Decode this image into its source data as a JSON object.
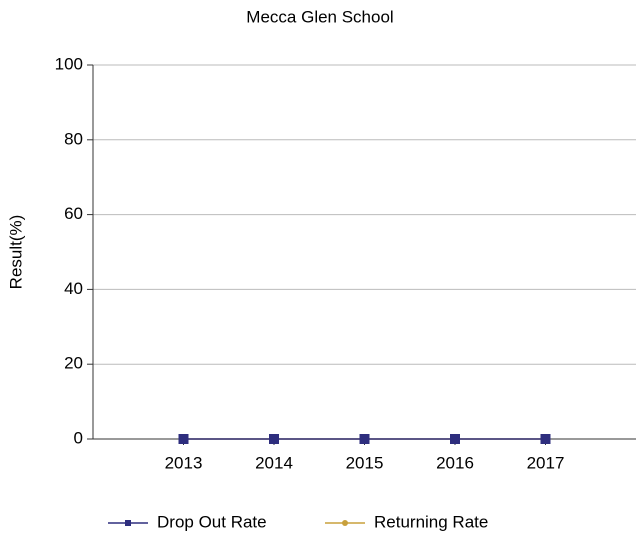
{
  "chart_data": {
    "type": "line",
    "title": "Mecca Glen School",
    "y_label": "Result(%)",
    "categories": [
      "2013",
      "2014",
      "2015",
      "2016",
      "2017"
    ],
    "series": [
      {
        "name": "Drop Out Rate",
        "color": "#2e2e7e",
        "marker": "square",
        "values": [
          0,
          0,
          0,
          0,
          0
        ]
      },
      {
        "name": "Returning Rate",
        "color": "#c8a03c",
        "marker": "circle",
        "values": [
          0,
          0,
          0,
          0,
          0
        ]
      }
    ],
    "ylim": [
      0,
      100
    ],
    "yticks": [
      0,
      20,
      40,
      60,
      80,
      100
    ],
    "grid": true,
    "legend": "bottom"
  }
}
